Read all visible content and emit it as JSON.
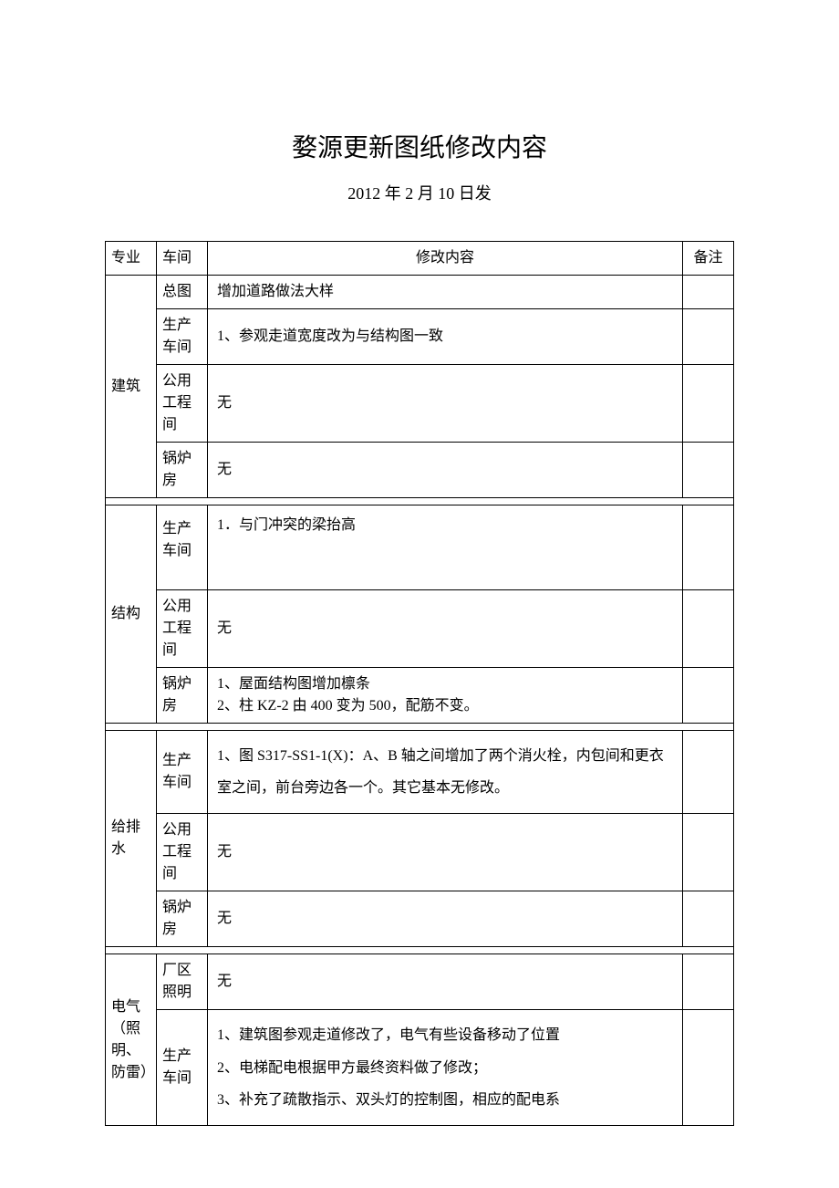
{
  "title": "婺源更新图纸修改内容",
  "subtitle": "2012 年 2 月 10 日发",
  "headers": {
    "specialty": "专业",
    "workshop": "车间",
    "content": "修改内容",
    "remark": "备注"
  },
  "sections": [
    {
      "specialty": "建筑",
      "rows": [
        {
          "workshop": "总图",
          "content": "增加道路做法大样",
          "remark": ""
        },
        {
          "workshop": "生产车间",
          "content": "1、参观走道宽度改为与结构图一致",
          "remark": ""
        },
        {
          "workshop": "公用工程间",
          "content": "无",
          "remark": ""
        },
        {
          "workshop": "锅炉房",
          "content": "无",
          "remark": ""
        }
      ]
    },
    {
      "specialty": "结构",
      "rows": [
        {
          "workshop": "生产车间",
          "content": "1．与门冲突的梁抬高",
          "remark": "",
          "tall": true
        },
        {
          "workshop": "公用工程间",
          "content": "无",
          "remark": ""
        },
        {
          "workshop": "锅炉房",
          "content": "1、屋面结构图增加檩条\n2、柱 KZ-2 由 400 变为 500，配筋不变。",
          "remark": ""
        }
      ]
    },
    {
      "specialty": "给排水",
      "rows": [
        {
          "workshop": "生产车间",
          "content": "1、图 S317-SS1-1(X)：A、B 轴之间增加了两个消火栓，内包间和更衣室之间，前台旁边各一个。其它基本无修改。",
          "remark": "",
          "tall2": true
        },
        {
          "workshop": "公用工程间",
          "content": "无",
          "remark": ""
        },
        {
          "workshop": "锅炉房",
          "content": "无",
          "remark": ""
        }
      ]
    },
    {
      "specialty": "电气（照明、防雷）",
      "rows": [
        {
          "workshop": "厂区照明",
          "content": "无",
          "remark": ""
        },
        {
          "workshop": "生产车间",
          "content": "1、建筑图参观走道修改了，电气有些设备移动了位置\n2、电梯配电根据甲方最终资料做了修改；\n3、补充了疏散指示、双头灯的控制图，相应的配电系",
          "remark": "",
          "tall2": true
        }
      ]
    }
  ]
}
